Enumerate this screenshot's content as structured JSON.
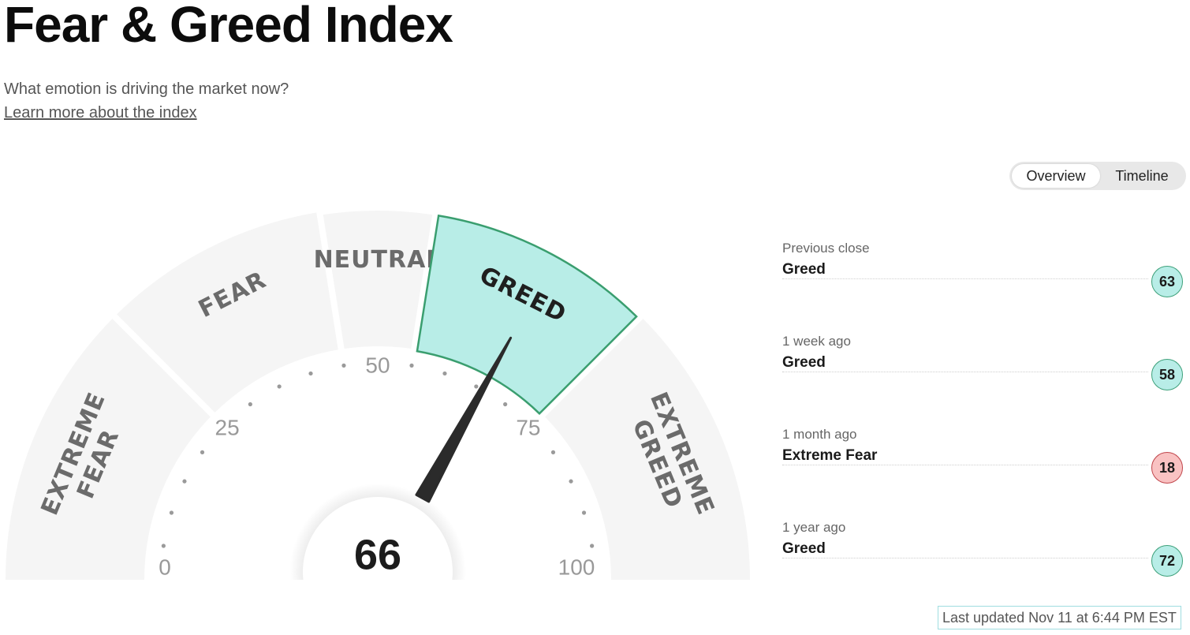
{
  "page": {
    "title": "Fear & Greed Index",
    "subtitle": "What emotion is driving the market now?",
    "learn_more": "Learn more about the index"
  },
  "view_toggle": {
    "options": [
      "Overview",
      "Timeline"
    ],
    "selected": "Overview"
  },
  "gauge": {
    "value": 66,
    "value_label": "66",
    "min": 0,
    "max": 100,
    "tick_labels": [
      "0",
      "25",
      "50",
      "75",
      "100"
    ],
    "active_zone": "GREED",
    "zones": [
      {
        "lines": [
          "EXTREME",
          "FEAR"
        ],
        "from": 0,
        "to": 25
      },
      {
        "lines": [
          "FEAR"
        ],
        "from": 25,
        "to": 45
      },
      {
        "lines": [
          "NEUTRAL"
        ],
        "from": 45,
        "to": 55
      },
      {
        "lines": [
          "GREED"
        ],
        "from": 55,
        "to": 75
      },
      {
        "lines": [
          "EXTREME",
          "GREED"
        ],
        "from": 75,
        "to": 100
      }
    ]
  },
  "history": [
    {
      "when": "Previous close",
      "label": "Greed",
      "value": "63",
      "sentiment": "greed"
    },
    {
      "when": "1 week ago",
      "label": "Greed",
      "value": "58",
      "sentiment": "greed"
    },
    {
      "when": "1 month ago",
      "label": "Extreme Fear",
      "value": "18",
      "sentiment": "extreme-fear"
    },
    {
      "when": "1 year ago",
      "label": "Greed",
      "value": "72",
      "sentiment": "greed"
    }
  ],
  "last_updated": "Last updated Nov 11 at 6:44 PM EST",
  "colors": {
    "zone_bg": "#f5f5f5",
    "greed_fill": "#b8ede7",
    "greed_stroke": "#3a9e6f",
    "zone_text": "#6b6b6b",
    "active_text": "#1f1f1f",
    "needle": "#2b2b2b",
    "greed_badge_bg": "#b8ede7",
    "greed_badge_border": "#3da07a",
    "fear_badge_bg": "#f9c2c2",
    "fear_badge_border": "#c0444a"
  }
}
